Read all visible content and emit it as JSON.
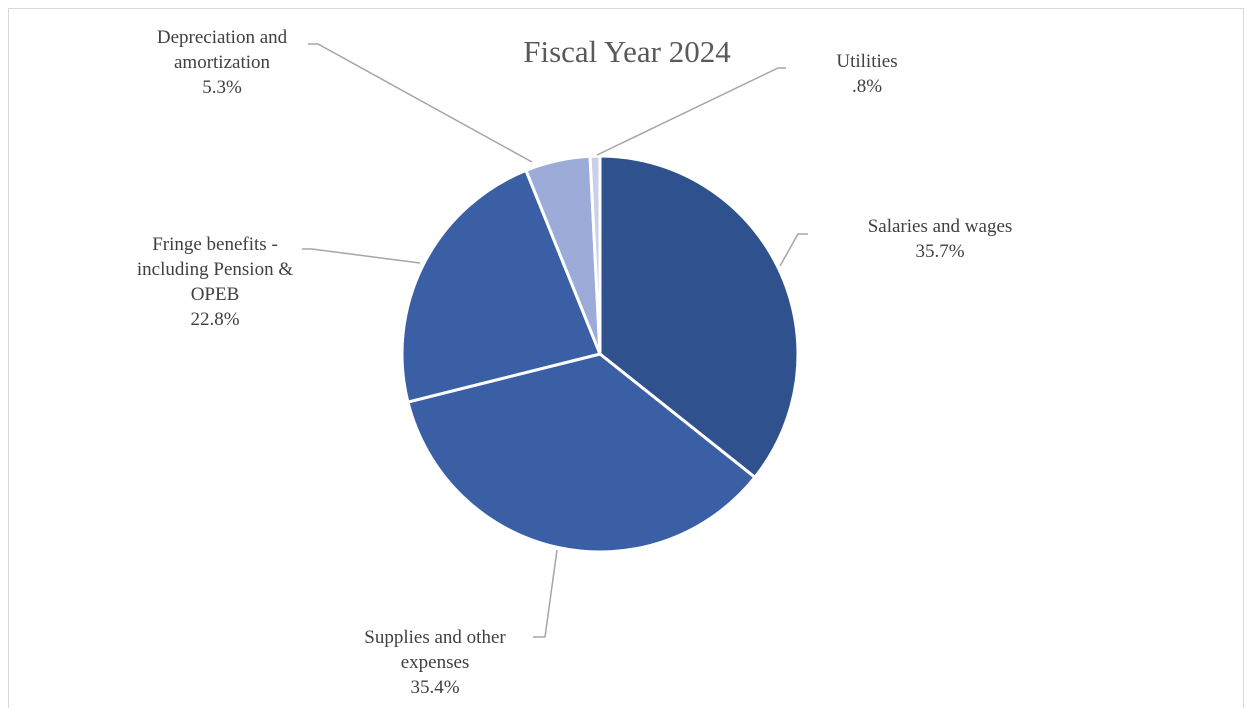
{
  "chart_data": {
    "type": "pie",
    "title": "Fiscal Year 2024",
    "slices": [
      {
        "label_lines": [
          "Salaries  and wages"
        ],
        "value_label": "35.7%",
        "value": 35.7,
        "color": "#2f528f"
      },
      {
        "label_lines": [
          "Supplies and other",
          "expenses"
        ],
        "value_label": "35.4%",
        "value": 35.4,
        "color": "#3a5fa5"
      },
      {
        "label_lines": [
          "Fringe benefits -",
          "including Pension &",
          "OPEB"
        ],
        "value_label": "22.8%",
        "value": 22.8,
        "color": "#3a5fa5"
      },
      {
        "label_lines": [
          "Depreciation and",
          "amortization"
        ],
        "value_label": "5.3%",
        "value": 5.3,
        "color": "#9dabd8"
      },
      {
        "label_lines": [
          "Utilities"
        ],
        "value_label": ".8%",
        "value": 0.8,
        "color": "#c9d0ea"
      }
    ],
    "legend": "none"
  }
}
